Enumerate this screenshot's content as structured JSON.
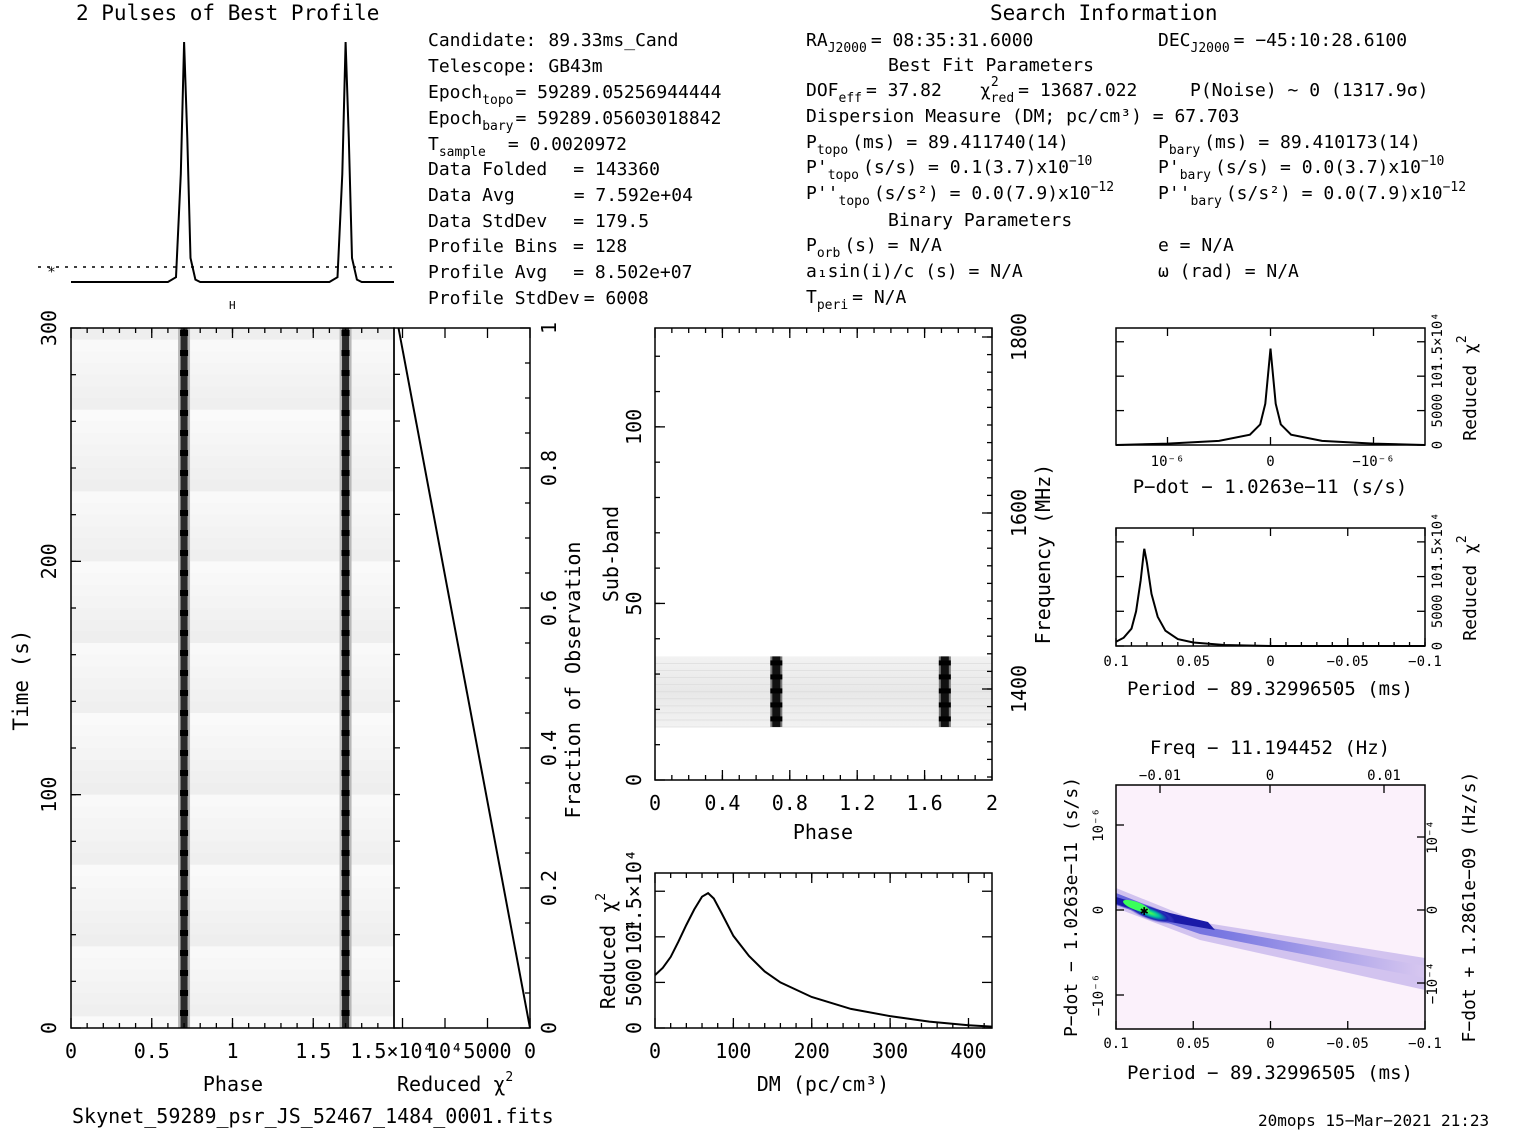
{
  "header": {
    "profile_title": "2 Pulses of Best Profile",
    "search_title": "Search Information"
  },
  "info_left": [
    {
      "label": "Candidate:",
      "value": "89.33ms_Cand"
    },
    {
      "label": "Telescope:",
      "value": "GB43m"
    },
    {
      "label": "Epoch",
      "sub": "topo",
      "value": "= 59289.05256944444"
    },
    {
      "label": "Epoch",
      "sub": "bary",
      "value": "= 59289.05603018842"
    },
    {
      "label": "T",
      "sub": "sample",
      "value": "=   0.0020972"
    },
    {
      "label": "Data Folded",
      "value": "=   143360"
    },
    {
      "label": "Data Avg",
      "value": "=   7.592e+04"
    },
    {
      "label": "Data StdDev",
      "value": "=   179.5"
    },
    {
      "label": "Profile Bins",
      "value": "=   128"
    },
    {
      "label": "Profile Avg",
      "value": "=   8.502e+07"
    },
    {
      "label": "Profile StdDev",
      "value": "=   6008"
    }
  ],
  "info_right": {
    "ra": {
      "label": "RA",
      "sub": "J2000",
      "value": "= 08:35:31.6000"
    },
    "dec": {
      "label": "DEC",
      "sub": "J2000",
      "value": "= −45:10:28.6100"
    },
    "best_fit_title": "Best Fit Parameters",
    "dof": {
      "label": "DOF",
      "sub": "eff",
      "value": "= 37.82"
    },
    "chi": {
      "label": "χ",
      "sup": "2",
      "sub": "red",
      "value": "= 13687.022"
    },
    "pnoise": "P(Noise) ~ 0   (1317.9σ)",
    "dm_line": "Dispersion Measure (DM; pc/cm³) = 67.703",
    "p_topo": {
      "label": "P",
      "sub": "topo",
      "value": "(ms) =  89.411740(14)"
    },
    "p_bary": {
      "label": "P",
      "sub": "bary",
      "value": "(ms) =  89.410173(14)"
    },
    "pd_topo": {
      "label": "P'",
      "sub": "topo",
      "value": "(s/s) =  0.1(3.7)x10",
      "exp": "−10"
    },
    "pd_bary": {
      "label": "P'",
      "sub": "bary",
      "value": "(s/s) = 0.0(3.7)x10",
      "exp": "−10"
    },
    "pdd_topo": {
      "label": "P''",
      "sub": "topo",
      "value": "(s/s²) = 0.0(7.9)x10",
      "exp": "−12"
    },
    "pdd_bary": {
      "label": "P''",
      "sub": "bary",
      "value": "(s/s²) = 0.0(7.9)x10",
      "exp": "−12"
    },
    "binary_title": "Binary Parameters",
    "porb": {
      "label": "P",
      "sub": "orb",
      "value": "(s) = N/A"
    },
    "e": "e = N/A",
    "a1": "a₁sin(i)/c (s) = N/A",
    "omega": "ω (rad) = N/A",
    "tperi": {
      "label": "T",
      "sub": "peri",
      "value": "= N/A"
    }
  },
  "footer": {
    "filename": "Skynet_59289_psr_JS_52467_1484_0001.fits",
    "stamp": "20mops 15−Mar−2021 21:23"
  },
  "chart_data": [
    {
      "type": "line",
      "title": "2 Pulses of Best Profile",
      "x": [
        0,
        0.6,
        0.65,
        0.68,
        0.7,
        0.72,
        0.74,
        0.77,
        0.8,
        1.0,
        1.6,
        1.65,
        1.68,
        1.7,
        1.72,
        1.74,
        1.77,
        1.8,
        2.0
      ],
      "y": [
        0,
        0,
        0.02,
        0.45,
        1.0,
        0.6,
        0.1,
        0.01,
        0,
        0,
        0,
        0.02,
        0.45,
        1.0,
        0.6,
        0.1,
        0.01,
        0,
        0
      ],
      "xlim": [
        0,
        2
      ]
    },
    {
      "type": "heatmap",
      "name": "time-phase",
      "xlabel": "Phase",
      "ylabel": "Time (s)",
      "xlim": [
        0,
        2
      ],
      "ylim": [
        0,
        300
      ],
      "xticks": [
        "0",
        "0.5",
        "1",
        "1.5"
      ],
      "yticks": [
        "0",
        "100",
        "200",
        "300"
      ],
      "right_axis_label": "Fraction of Observation",
      "right_ticks": [
        "0",
        "0.2",
        "0.4",
        "0.6",
        "0.8",
        "1"
      ],
      "pulse_phases": [
        0.7,
        1.7
      ]
    },
    {
      "type": "line",
      "name": "reduced-chi2-vs-time",
      "xlabel": "Reduced χ²",
      "xticks": [
        "1.5×10⁴",
        "10⁴",
        "5000",
        "0"
      ],
      "x_reversed": true,
      "x": [
        0,
        15000
      ],
      "y": [
        0,
        1
      ]
    },
    {
      "type": "heatmap",
      "name": "subband-phase",
      "xlabel": "Phase",
      "ylabel": "Sub-band",
      "right_axis_label": "Frequency (MHz)",
      "xlim": [
        0,
        2
      ],
      "ylim": [
        0,
        128
      ],
      "xticks": [
        "0",
        "0.4",
        "0.8",
        "1.2",
        "1.6",
        "2"
      ],
      "yticks": [
        "0",
        "50",
        "100"
      ],
      "right_ticks": [
        "1400",
        "1600",
        "1800"
      ],
      "pulse_phases": [
        0.72,
        1.72
      ],
      "active_subbands": [
        15,
        35
      ]
    },
    {
      "type": "line",
      "name": "dm-curve",
      "xlabel": "DM (pc/cm³)",
      "ylabel": "Reduced χ²",
      "xlim": [
        0,
        430
      ],
      "ylim": [
        0,
        17000
      ],
      "xticks": [
        "0",
        "100",
        "200",
        "300",
        "400"
      ],
      "yticks": [
        "0",
        "5000",
        "10⁴",
        "1.5×10⁴"
      ],
      "x": [
        0,
        10,
        20,
        30,
        40,
        50,
        60,
        67.7,
        75,
        85,
        100,
        120,
        140,
        160,
        200,
        250,
        300,
        350,
        400,
        430
      ],
      "y": [
        5800,
        6600,
        7800,
        9500,
        11300,
        13000,
        14400,
        14800,
        14200,
        12600,
        10100,
        7900,
        6200,
        5000,
        3400,
        2100,
        1300,
        700,
        300,
        150
      ]
    },
    {
      "type": "line",
      "name": "pdot-curve",
      "xlabel": "P−dot − 1.0263e−11 (s/s)",
      "ylabel": "Reduced χ²",
      "xlim": [
        1.5e-06,
        -1.5e-06
      ],
      "ylim": [
        0,
        17000
      ],
      "xticks": [
        "10⁻⁶",
        "0",
        "−10⁻⁶"
      ],
      "yticks": [
        "0",
        "5000",
        "10⁴",
        "1.5×10⁴"
      ],
      "x": [
        1.5e-06,
        1e-06,
        5e-07,
        2e-07,
        1e-07,
        5e-08,
        0,
        -5e-08,
        -1e-07,
        -2e-07,
        -5e-07,
        -1e-06,
        -1.5e-06
      ],
      "y": [
        0,
        200,
        600,
        1500,
        3000,
        6000,
        14000,
        6000,
        3000,
        1500,
        600,
        200,
        0
      ]
    },
    {
      "type": "line",
      "name": "period-curve",
      "xlabel": "Period − 89.32996505 (ms)",
      "ylabel": "Reduced χ²",
      "xlim": [
        0.1,
        -0.1
      ],
      "ylim": [
        0,
        17000
      ],
      "xticks": [
        "0.1",
        "0.05",
        "0",
        "−0.05",
        "−0.1"
      ],
      "yticks": [
        "0",
        "5000",
        "10⁴",
        "1.5×10⁴"
      ],
      "x": [
        0.1,
        0.095,
        0.09,
        0.087,
        0.084,
        0.082,
        0.0817,
        0.08,
        0.077,
        0.073,
        0.068,
        0.06,
        0.05,
        0.03,
        0,
        -0.1
      ],
      "y": [
        600,
        1200,
        2500,
        5000,
        9500,
        13500,
        14000,
        12000,
        7500,
        4200,
        2200,
        1000,
        500,
        150,
        0,
        0
      ]
    },
    {
      "type": "heatmap",
      "name": "period-pdot",
      "title": "Freq − 11.194452 (Hz)",
      "xlabel": "Period − 89.32996505 (ms)",
      "ylabel": "P−dot − 1.0263e−11 (s/s)",
      "right_axis_label": "F−dot + 1.2861e−09 (Hz/s)",
      "xlim": [
        0.1,
        -0.1
      ],
      "xticks": [
        "0.1",
        "0.05",
        "0",
        "−0.05",
        "−0.1"
      ],
      "top_ticks": [
        "−0.01",
        "0",
        "0.01"
      ],
      "yticks": [
        "10⁻⁶",
        "0",
        "−10⁻⁶"
      ],
      "right_ticks": [
        "−10⁻⁴",
        "0",
        "10⁻⁴"
      ],
      "peak": {
        "period": 0.0817,
        "pdot": 0
      }
    }
  ]
}
